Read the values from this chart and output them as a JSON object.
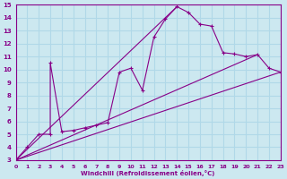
{
  "xlabel": "Windchill (Refroidissement éolien,°C)",
  "xlim": [
    0,
    23
  ],
  "ylim": [
    3,
    15
  ],
  "xticks": [
    0,
    1,
    2,
    3,
    4,
    5,
    6,
    7,
    8,
    9,
    10,
    11,
    12,
    13,
    14,
    15,
    16,
    17,
    18,
    19,
    20,
    21,
    22,
    23
  ],
  "yticks": [
    3,
    4,
    5,
    6,
    7,
    8,
    9,
    10,
    11,
    12,
    13,
    14,
    15
  ],
  "background_color": "#cce8f0",
  "grid_color": "#b0d8e8",
  "line_color": "#880088",
  "main_series": {
    "x": [
      0,
      1,
      2,
      3,
      3,
      4,
      5,
      6,
      7,
      8,
      9,
      10,
      11,
      12,
      13,
      14,
      15,
      16,
      17,
      18,
      19,
      20,
      21,
      22,
      23
    ],
    "y": [
      3,
      4,
      5,
      5,
      10.5,
      5.2,
      5.3,
      5.5,
      5.7,
      5.9,
      9.8,
      10.1,
      8.4,
      12.5,
      13.9,
      14.85,
      14.4,
      13.5,
      13.35,
      11.3,
      11.2,
      11.0,
      11.15,
      10.1,
      9.8
    ]
  },
  "straight_lines": [
    {
      "x": [
        0,
        23
      ],
      "y": [
        3,
        9.8
      ]
    },
    {
      "x": [
        0,
        21
      ],
      "y": [
        3,
        11.15
      ]
    },
    {
      "x": [
        0,
        14
      ],
      "y": [
        3,
        14.85
      ]
    }
  ]
}
